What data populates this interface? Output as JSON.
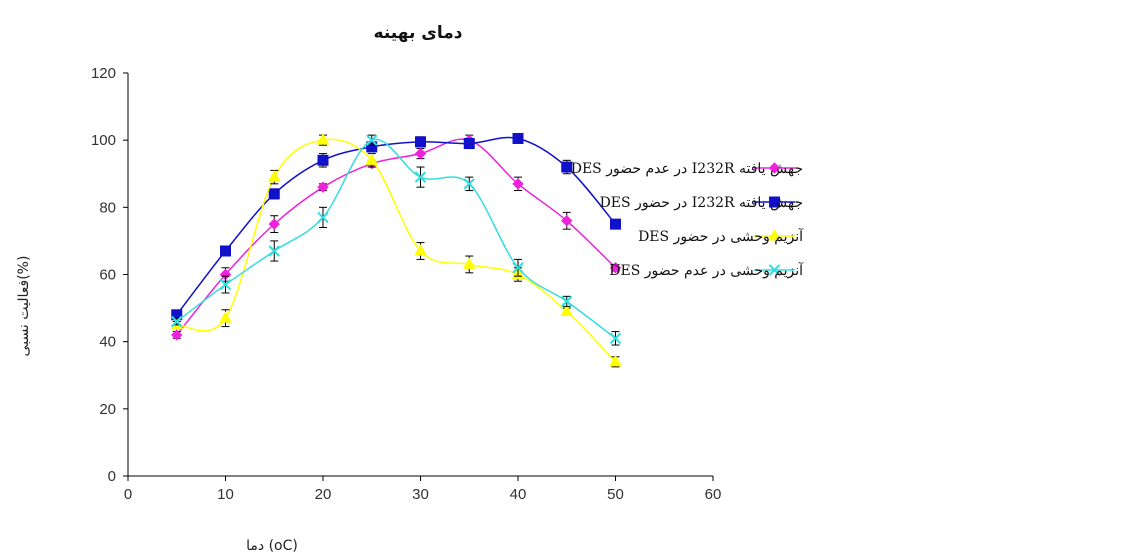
{
  "chart_data": {
    "type": "line",
    "title": "دمای بهینه",
    "xlabel": "دما (oC)",
    "ylabel": "فعالیت نسبی(%)",
    "xlim": [
      0,
      60
    ],
    "ylim": [
      0,
      120
    ],
    "xticks": [
      "0",
      "10",
      "20",
      "30",
      "40",
      "50",
      "60"
    ],
    "yticks": [
      "0",
      "20",
      "40",
      "60",
      "80",
      "100",
      "120"
    ],
    "grid": false,
    "legend": "right",
    "x": [
      5,
      10,
      15,
      20,
      25,
      30,
      35,
      40,
      45,
      50
    ],
    "series": [
      {
        "name": "جهش یافته I232R در عدم حضور DES",
        "color": "#ee22dd",
        "marker": "diamond",
        "values": [
          42,
          60,
          75,
          86,
          93,
          96,
          100,
          87,
          76,
          62
        ],
        "errors": [
          1,
          2,
          2.5,
          1,
          1,
          1.5,
          1.5,
          2,
          2.5,
          1
        ]
      },
      {
        "name": "جهش یافته I232R در حضور DES",
        "color": "#1111cc",
        "marker": "square",
        "values": [
          48,
          67,
          84,
          94,
          98,
          99.5,
          99,
          100.5,
          92,
          75
        ],
        "errors": [
          1,
          1,
          1.5,
          2,
          1.5,
          1.5,
          1.5,
          1,
          2,
          1
        ]
      },
      {
        "name": "آنزیم وحشی در حضور DES",
        "color": "#ffff00",
        "marker": "triangle",
        "values": [
          45,
          47,
          89,
          100,
          94,
          67,
          63,
          60,
          49,
          34
        ],
        "errors": [
          1,
          2.5,
          2,
          1.5,
          2,
          2.5,
          2.5,
          2,
          1,
          1.5
        ]
      },
      {
        "name": "آنزیم وحشی در عدم حضور DES",
        "color": "#33dddd",
        "marker": "x",
        "values": [
          46,
          57,
          67,
          77,
          100,
          89,
          87,
          62,
          52,
          41
        ],
        "errors": [
          1,
          2.5,
          3,
          3,
          1.5,
          3,
          2,
          2.5,
          1.5,
          2
        ]
      }
    ]
  }
}
